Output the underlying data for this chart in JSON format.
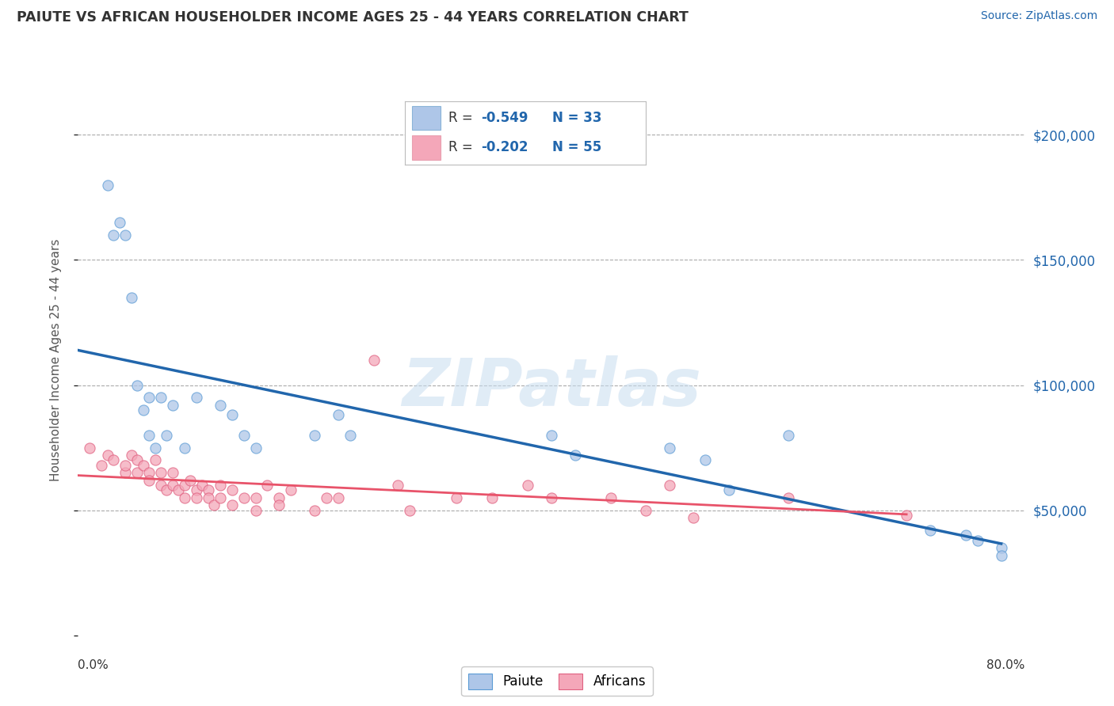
{
  "title": "PAIUTE VS AFRICAN HOUSEHOLDER INCOME AGES 25 - 44 YEARS CORRELATION CHART",
  "source": "Source: ZipAtlas.com",
  "ylabel": "Householder Income Ages 25 - 44 years",
  "xlim": [
    0.0,
    0.8
  ],
  "ylim": [
    0,
    220000
  ],
  "yticks": [
    0,
    50000,
    100000,
    150000,
    200000
  ],
  "ytick_labels": [
    "",
    "$50,000",
    "$100,000",
    "$150,000",
    "$200,000"
  ],
  "grid_color": "#cccccc",
  "background_color": "#ffffff",
  "watermark": "ZIPatlas",
  "paiute_color": "#aec6e8",
  "paiute_edge_color": "#5b9bd5",
  "african_color": "#f4a7b9",
  "african_edge_color": "#e06080",
  "paiute_line_color": "#2166ac",
  "african_line_color": "#e8536a",
  "paiute_x": [
    0.025,
    0.03,
    0.035,
    0.04,
    0.045,
    0.05,
    0.055,
    0.06,
    0.06,
    0.065,
    0.07,
    0.075,
    0.08,
    0.09,
    0.1,
    0.12,
    0.13,
    0.14,
    0.15,
    0.2,
    0.22,
    0.23,
    0.4,
    0.42,
    0.5,
    0.53,
    0.55,
    0.6,
    0.72,
    0.75,
    0.78,
    0.76,
    0.78
  ],
  "paiute_y": [
    180000,
    160000,
    165000,
    160000,
    135000,
    100000,
    90000,
    80000,
    95000,
    75000,
    95000,
    80000,
    92000,
    75000,
    95000,
    92000,
    88000,
    80000,
    75000,
    80000,
    88000,
    80000,
    80000,
    72000,
    75000,
    70000,
    58000,
    80000,
    42000,
    40000,
    35000,
    38000,
    32000
  ],
  "african_x": [
    0.01,
    0.02,
    0.025,
    0.03,
    0.04,
    0.04,
    0.045,
    0.05,
    0.05,
    0.055,
    0.06,
    0.06,
    0.065,
    0.07,
    0.07,
    0.075,
    0.08,
    0.08,
    0.085,
    0.09,
    0.09,
    0.095,
    0.1,
    0.1,
    0.105,
    0.11,
    0.11,
    0.115,
    0.12,
    0.12,
    0.13,
    0.13,
    0.14,
    0.15,
    0.15,
    0.16,
    0.17,
    0.17,
    0.18,
    0.2,
    0.21,
    0.22,
    0.25,
    0.27,
    0.28,
    0.32,
    0.35,
    0.38,
    0.4,
    0.45,
    0.48,
    0.5,
    0.52,
    0.6,
    0.7
  ],
  "african_y": [
    75000,
    68000,
    72000,
    70000,
    65000,
    68000,
    72000,
    70000,
    65000,
    68000,
    65000,
    62000,
    70000,
    65000,
    60000,
    58000,
    65000,
    60000,
    58000,
    55000,
    60000,
    62000,
    58000,
    55000,
    60000,
    58000,
    55000,
    52000,
    60000,
    55000,
    58000,
    52000,
    55000,
    50000,
    55000,
    60000,
    55000,
    52000,
    58000,
    50000,
    55000,
    55000,
    110000,
    60000,
    50000,
    55000,
    55000,
    60000,
    55000,
    55000,
    50000,
    60000,
    47000,
    55000,
    48000
  ],
  "legend_paiute_r": "-0.549",
  "legend_paiute_n": "33",
  "legend_african_r": "-0.202",
  "legend_african_n": "55"
}
